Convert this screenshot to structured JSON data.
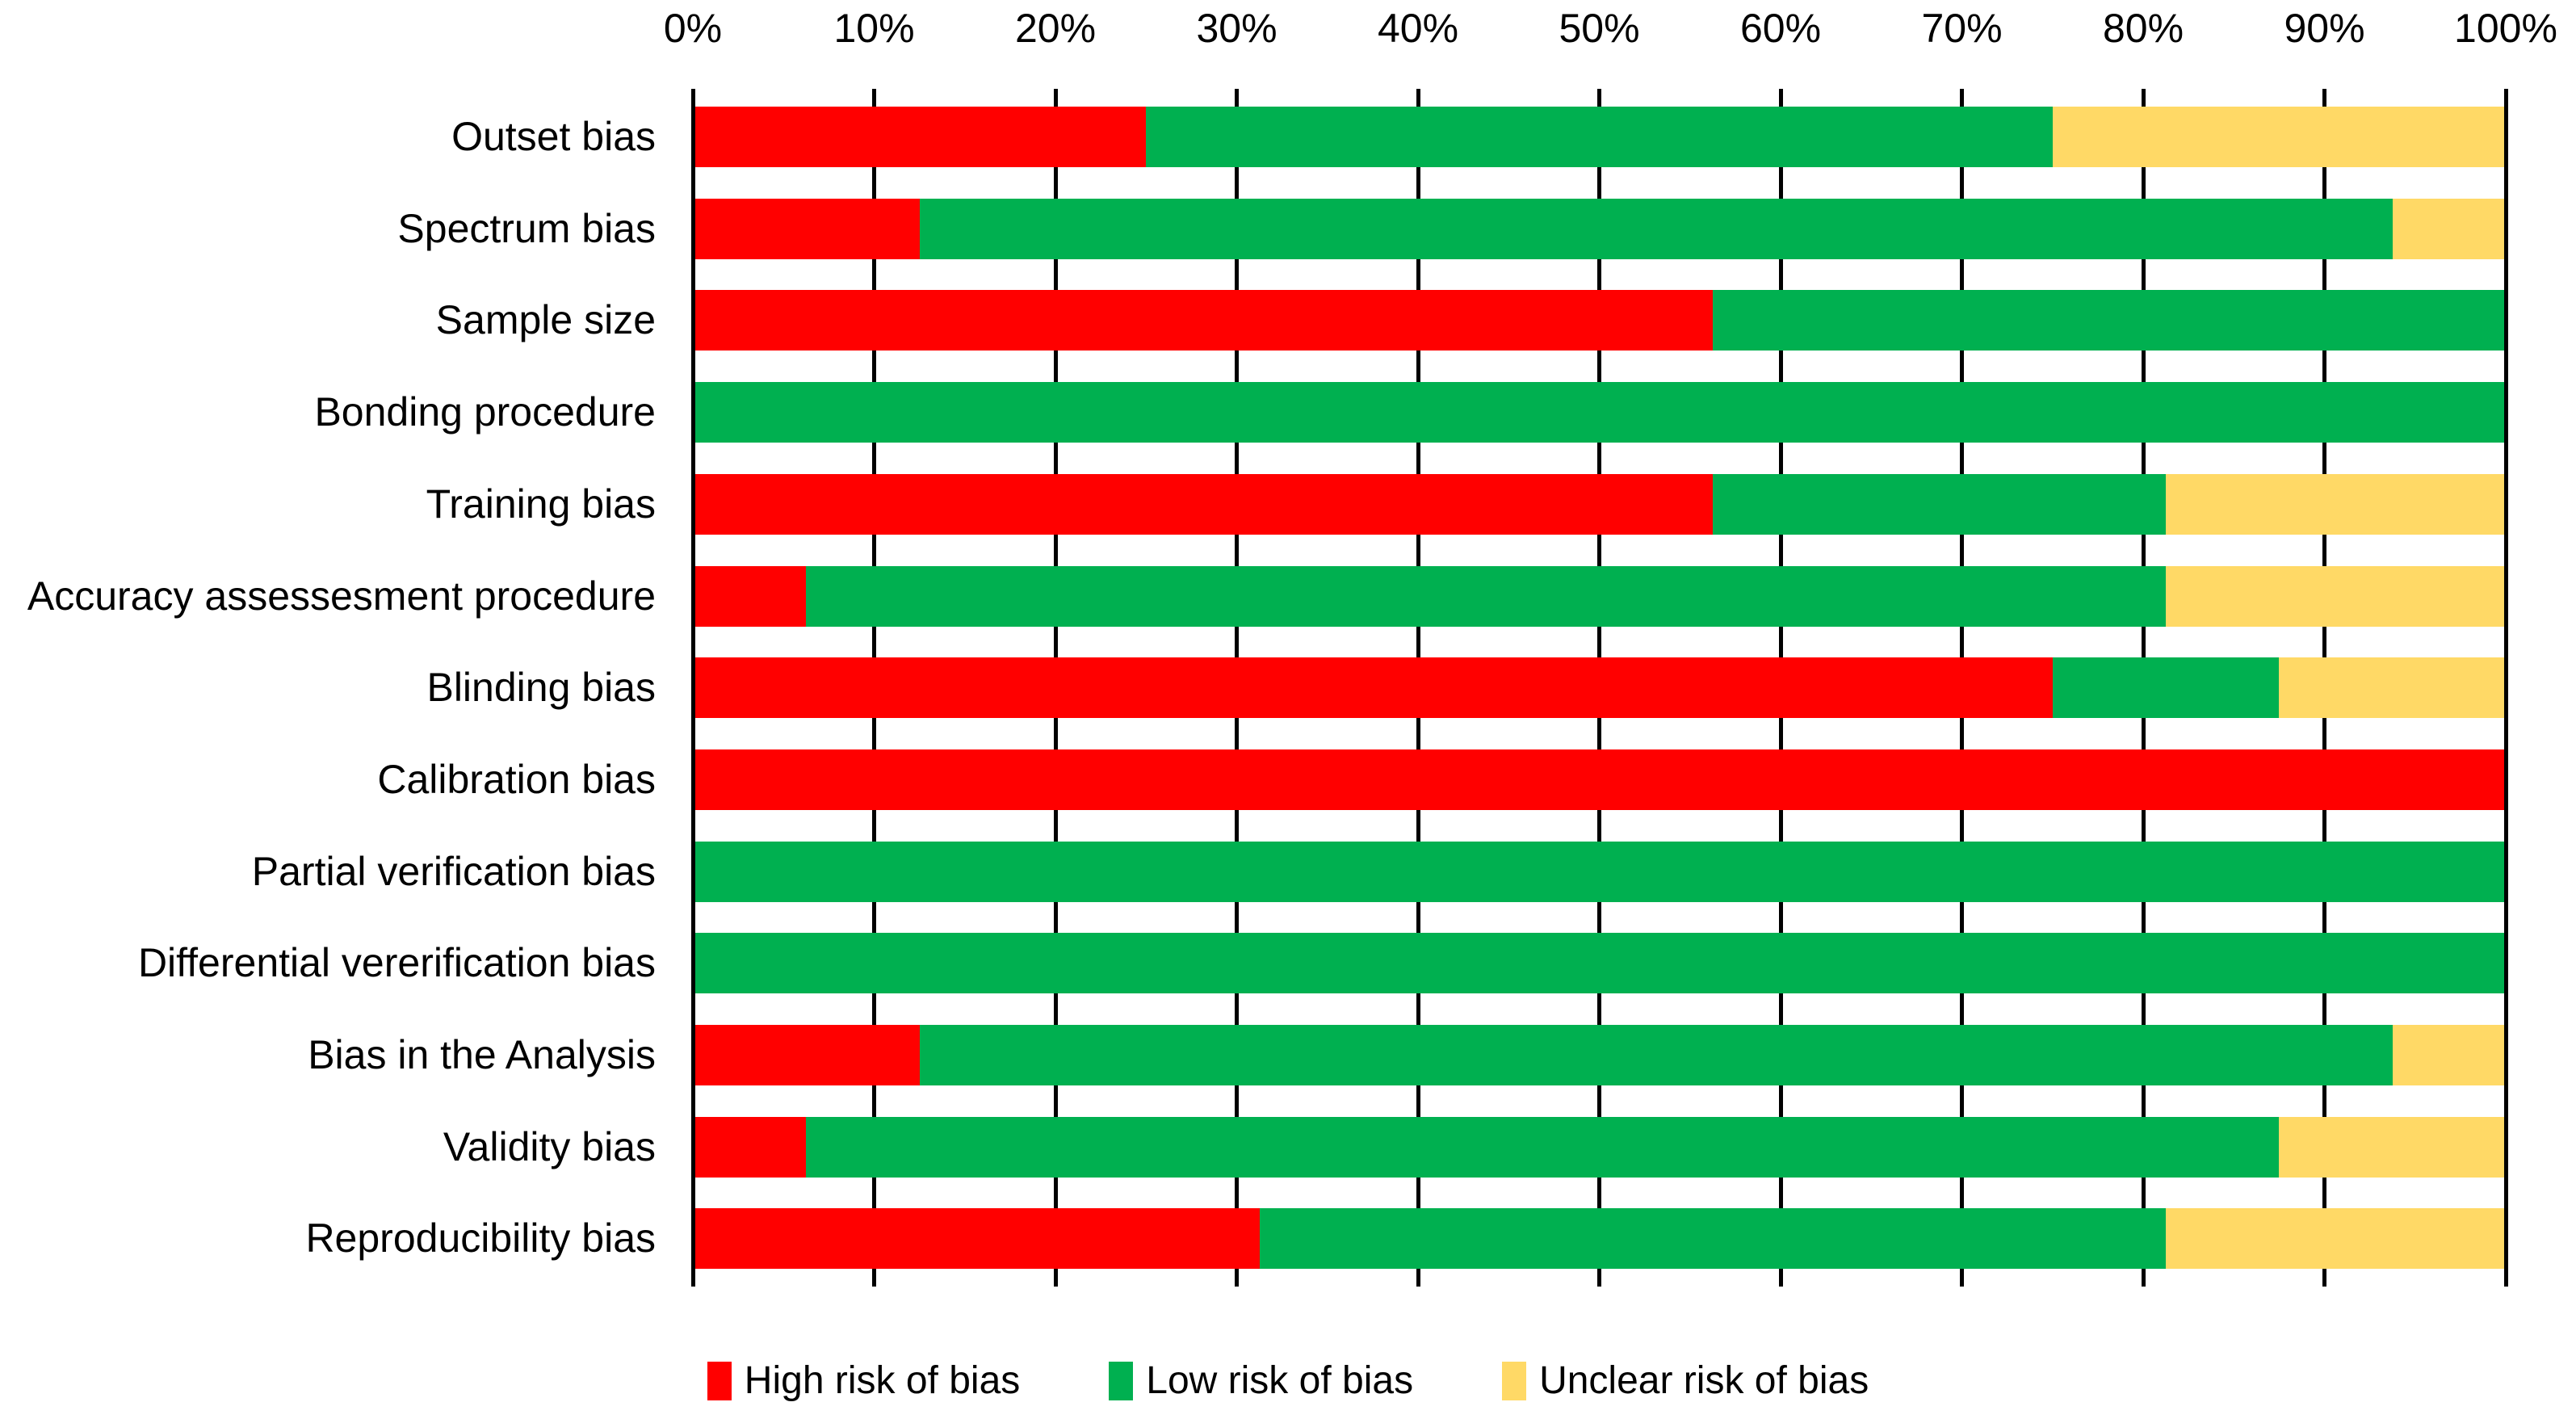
{
  "chart_data": {
    "type": "bar",
    "stacked": true,
    "orientation": "horizontal",
    "title": "",
    "categories": [
      "Outset bias",
      "Spectrum bias",
      "Sample size",
      "Bonding procedure",
      "Training bias",
      "Accuracy assessesment procedure",
      "Blinding bias",
      "Calibration bias",
      "Partial verification bias",
      "Differential vererification bias",
      "Bias in the Analysis",
      "Validity bias",
      "Reproducibility bias"
    ],
    "series": [
      {
        "name": "High risk of bias",
        "color": "#FF0000",
        "values": [
          25,
          12.5,
          56.25,
          0,
          56.25,
          6.25,
          75,
          100,
          0,
          0,
          12.5,
          6.25,
          31.25
        ]
      },
      {
        "name": "Low risk of bias",
        "color": "#00B050",
        "values": [
          50,
          81.25,
          43.75,
          100,
          25,
          75,
          12.5,
          0,
          100,
          100,
          81.25,
          81.25,
          50
        ]
      },
      {
        "name": "Unclear risk of bias",
        "color": "#FFD966",
        "values": [
          25,
          6.25,
          0,
          0,
          18.75,
          18.75,
          12.5,
          0,
          0,
          0,
          6.25,
          12.5,
          18.75
        ]
      }
    ],
    "x_axis": {
      "position": "top",
      "min": 0,
      "max": 100,
      "ticks": [
        "0%",
        "10%",
        "20%",
        "30%",
        "40%",
        "50%",
        "60%",
        "70%",
        "80%",
        "90%",
        "100%"
      ]
    },
    "grid": true,
    "legend": {
      "position": "bottom",
      "entries": [
        {
          "label": "High risk of bias",
          "color": "#FF0000"
        },
        {
          "label": "Low risk of bias",
          "color": "#00B050"
        },
        {
          "label": "Unclear risk of bias",
          "color": "#FFD966"
        }
      ]
    },
    "colors": {
      "axis": "#000000",
      "text": "#000000",
      "background": "#FFFFFF"
    }
  }
}
